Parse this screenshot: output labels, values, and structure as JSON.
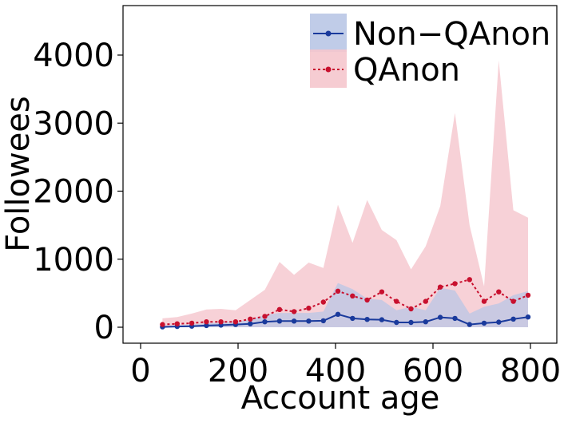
{
  "chart_data": {
    "type": "line",
    "xlabel": "Account age",
    "ylabel": "Followees",
    "xlim": [
      -20,
      830
    ],
    "ylim": [
      -230,
      4750
    ],
    "xticks": [
      0,
      200,
      400,
      600,
      800
    ],
    "yticks": [
      0,
      1000,
      2000,
      3000,
      4000
    ],
    "x_tick_labels": [
      "0",
      "200",
      "400",
      "600",
      "800"
    ],
    "y_tick_labels": [
      "0",
      "1000",
      "2000",
      "3000",
      "4000"
    ],
    "legend_position": "top-right",
    "x": [
      45,
      75,
      105,
      135,
      165,
      195,
      225,
      255,
      285,
      315,
      345,
      375,
      405,
      435,
      465,
      495,
      525,
      555,
      585,
      615,
      645,
      675,
      705,
      735,
      765,
      795
    ],
    "series": [
      {
        "name": "Non−QAnon",
        "line_color": "#1a3a9c",
        "band_color": "#b9c6e6",
        "values": [
          5,
          10,
          15,
          25,
          30,
          40,
          50,
          80,
          90,
          90,
          90,
          95,
          190,
          130,
          115,
          110,
          70,
          70,
          80,
          145,
          130,
          40,
          60,
          75,
          120,
          150
        ],
        "lower": [
          0,
          0,
          0,
          0,
          0,
          0,
          0,
          0,
          0,
          0,
          0,
          0,
          0,
          0,
          0,
          0,
          0,
          0,
          0,
          0,
          0,
          0,
          0,
          0,
          0,
          0
        ],
        "upper": [
          15,
          30,
          40,
          60,
          70,
          80,
          110,
          180,
          210,
          210,
          210,
          230,
          650,
          560,
          420,
          400,
          250,
          300,
          250,
          580,
          540,
          200,
          300,
          350,
          470,
          530
        ],
        "line_style": "solid"
      },
      {
        "name": "QAnon",
        "line_color": "#c8102e",
        "band_color": "#f5c6cd",
        "values": [
          40,
          50,
          60,
          80,
          80,
          80,
          120,
          160,
          260,
          230,
          280,
          370,
          530,
          460,
          400,
          520,
          380,
          270,
          380,
          590,
          640,
          700,
          380,
          520,
          380,
          470
        ],
        "lower": [
          0,
          0,
          0,
          0,
          0,
          0,
          0,
          0,
          0,
          0,
          0,
          0,
          0,
          0,
          0,
          0,
          0,
          0,
          0,
          0,
          0,
          0,
          0,
          0,
          0,
          0
        ],
        "upper": [
          130,
          150,
          200,
          260,
          270,
          250,
          400,
          550,
          960,
          770,
          950,
          870,
          1800,
          1240,
          1870,
          1430,
          1280,
          850,
          1190,
          1780,
          3150,
          1500,
          600,
          3920,
          1720,
          1610
        ],
        "line_style": "dashed"
      }
    ]
  }
}
